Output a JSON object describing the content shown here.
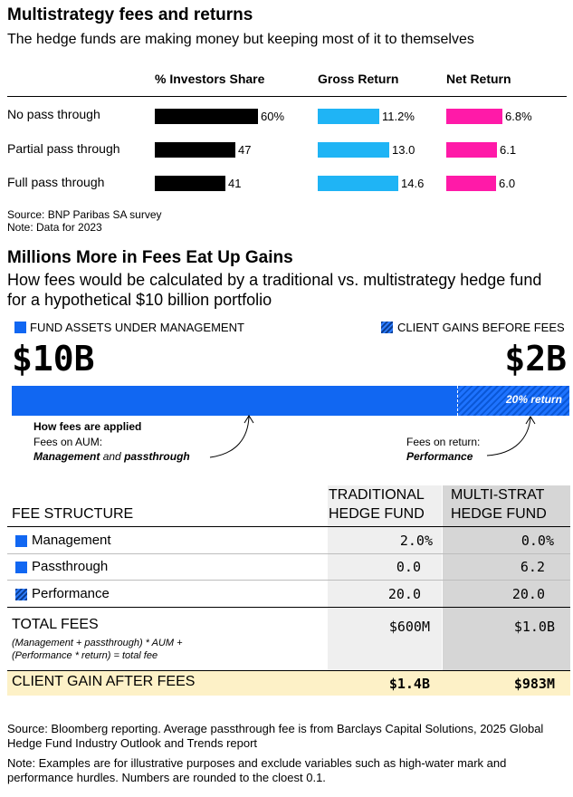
{
  "chart_data": {
    "type": "bar",
    "title": "Multistrategy fees and returns",
    "subtitle": "The hedge funds are making money but keeping most of it to themselves",
    "categories": [
      "No pass through",
      "Partial pass through",
      "Full pass through"
    ],
    "series": [
      {
        "name": "% Investors Share",
        "values": [
          60,
          47,
          41
        ],
        "labels": [
          "60%",
          "47",
          "41"
        ],
        "color": "#000000"
      },
      {
        "name": "Gross Return",
        "values": [
          11.2,
          13.0,
          14.6
        ],
        "labels": [
          "11.2%",
          "13.0",
          "14.6"
        ],
        "color": "#1fb4f5"
      },
      {
        "name": "Net Return",
        "values": [
          6.8,
          6.1,
          6.0
        ],
        "labels": [
          "6.8%",
          "6.1",
          "6.0"
        ],
        "color": "#ff1aa8"
      }
    ],
    "source": "Source: BNP Paribas SA survey",
    "note": "Note: Data for 2023"
  },
  "section2": {
    "title": "Millions More in Fees Eat Up Gains",
    "subtitle": "How fees would be calculated by a traditional vs. multistrategy hedge fund for a hypothetical $10 billion portfolio",
    "legend_aum": "FUND ASSETS UNDER MANAGEMENT",
    "legend_gains": "CLIENT GAINS BEFORE FEES",
    "aum_value": "$10B",
    "gains_value": "$2B",
    "return_label": "20% return",
    "return_fraction": 0.2,
    "how_fees": "How fees are applied",
    "fees_on_aum": "Fees on AUM:",
    "mgmt_word": "Management",
    "and_word": " and ",
    "pass_word": "passthrough",
    "fees_on_return": "Fees on return:",
    "performance_word": "Performance",
    "colors": {
      "blue": "#1167f2",
      "dark_blue": "#0a57d6"
    }
  },
  "table": {
    "fee_structure": "FEE STRUCTURE",
    "trad_header_1": "TRADITIONAL",
    "trad_header_2": "HEDGE FUND",
    "multi_header_1": "MULTI-STRAT",
    "multi_header_2": "HEDGE FUND",
    "rows": [
      {
        "label": "Management",
        "trad": "2.0%",
        "multi": "0.0%"
      },
      {
        "label": "Passthrough",
        "trad": "0.0",
        "multi": "6.2"
      },
      {
        "label": "Performance",
        "trad": "20.0",
        "multi": "20.0"
      }
    ],
    "total_label": "TOTAL FEES",
    "total_trad": "$600M",
    "total_multi": "$1.0B",
    "formula_1": "(Management + passthrough) * AUM +",
    "formula_2": "(Performance * return) = total fee",
    "gain_label": "CLIENT GAIN AFTER FEES",
    "gain_trad": "$1.4B",
    "gain_multi": "$983M"
  },
  "footer": {
    "source": "Source: Bloomberg reporting. Average passthrough fee is from Barclays Capital Solutions, 2025 Global Hedge Fund Industry Outlook and Trends report",
    "note": "Note: Examples are for illustrative purposes and exclude variables such as high-water mark and performance hurdles. Numbers are rounded to the cloest 0.1."
  }
}
